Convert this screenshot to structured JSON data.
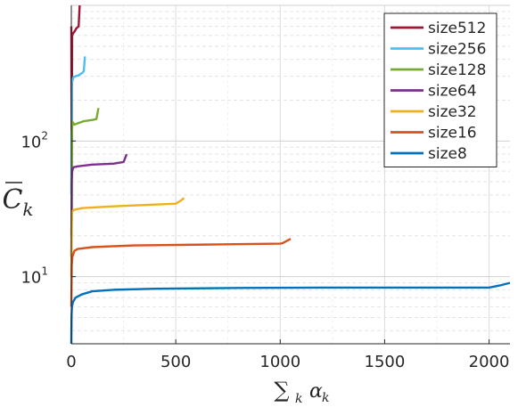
{
  "chart_data": {
    "type": "line",
    "title": "",
    "xlabel": "∑k αk",
    "ylabel": "C̄k",
    "x_scale": "linear",
    "y_scale": "log",
    "xlim": [
      0,
      2100
    ],
    "ylim": [
      3.2,
      1000
    ],
    "x_ticks": [
      0,
      500,
      1000,
      1500,
      2000
    ],
    "x_tick_labels": [
      "0",
      "500",
      "1000",
      "1500",
      "2000"
    ],
    "y_ticks": [
      10,
      100
    ],
    "y_tick_labels": [
      "10^1",
      "10^2"
    ],
    "grid": true,
    "legend_position": "top-right",
    "series": [
      {
        "name": "size512",
        "color": "#a2142f",
        "points": [
          [
            0,
            700
          ],
          [
            1,
            120
          ],
          [
            2,
            60
          ],
          [
            4,
            600
          ],
          [
            8,
            620
          ],
          [
            15,
            640
          ],
          [
            25,
            680
          ],
          [
            35,
            700
          ],
          [
            40,
            1000
          ]
        ]
      },
      {
        "name": "size256",
        "color": "#4dbeee",
        "points": [
          [
            0,
            40
          ],
          [
            1,
            120
          ],
          [
            2,
            110
          ],
          [
            3,
            270
          ],
          [
            10,
            295
          ],
          [
            20,
            300
          ],
          [
            35,
            305
          ],
          [
            55,
            320
          ],
          [
            60,
            330
          ],
          [
            65,
            420
          ]
        ]
      },
      {
        "name": "size128",
        "color": "#77ac30",
        "points": [
          [
            0,
            20
          ],
          [
            1,
            25
          ],
          [
            2,
            26
          ],
          [
            3,
            120
          ],
          [
            6,
            138
          ],
          [
            15,
            132
          ],
          [
            30,
            135
          ],
          [
            60,
            140
          ],
          [
            100,
            143
          ],
          [
            120,
            145
          ],
          [
            130,
            175
          ]
        ]
      },
      {
        "name": "size64",
        "color": "#7e2f8e",
        "points": [
          [
            0,
            14
          ],
          [
            1,
            20
          ],
          [
            2,
            50
          ],
          [
            4,
            60
          ],
          [
            10,
            64
          ],
          [
            30,
            65
          ],
          [
            100,
            67
          ],
          [
            200,
            68
          ],
          [
            250,
            70
          ],
          [
            265,
            80
          ]
        ]
      },
      {
        "name": "size32",
        "color": "#edb120",
        "points": [
          [
            0,
            10
          ],
          [
            1,
            15
          ],
          [
            2,
            22
          ],
          [
            3,
            30
          ],
          [
            10,
            31
          ],
          [
            50,
            32
          ],
          [
            200,
            33
          ],
          [
            400,
            34
          ],
          [
            500,
            34.5
          ],
          [
            520,
            36
          ],
          [
            540,
            38
          ]
        ]
      },
      {
        "name": "size16",
        "color": "#d95319",
        "points": [
          [
            0,
            6
          ],
          [
            2,
            12
          ],
          [
            5,
            14
          ],
          [
            15,
            15.5
          ],
          [
            30,
            16
          ],
          [
            100,
            16.5
          ],
          [
            300,
            17
          ],
          [
            600,
            17.2
          ],
          [
            1000,
            17.5
          ],
          [
            1010,
            17.6
          ],
          [
            1050,
            19
          ]
        ]
      },
      {
        "name": "size8",
        "color": "#0072bd",
        "points": [
          [
            0,
            3.2
          ],
          [
            1,
            5
          ],
          [
            3,
            6
          ],
          [
            8,
            6.5
          ],
          [
            20,
            7
          ],
          [
            50,
            7.4
          ],
          [
            100,
            7.8
          ],
          [
            200,
            8.0
          ],
          [
            400,
            8.15
          ],
          [
            800,
            8.25
          ],
          [
            1200,
            8.3
          ],
          [
            1600,
            8.3
          ],
          [
            2000,
            8.3
          ],
          [
            2050,
            8.6
          ],
          [
            2100,
            9
          ]
        ]
      }
    ]
  }
}
